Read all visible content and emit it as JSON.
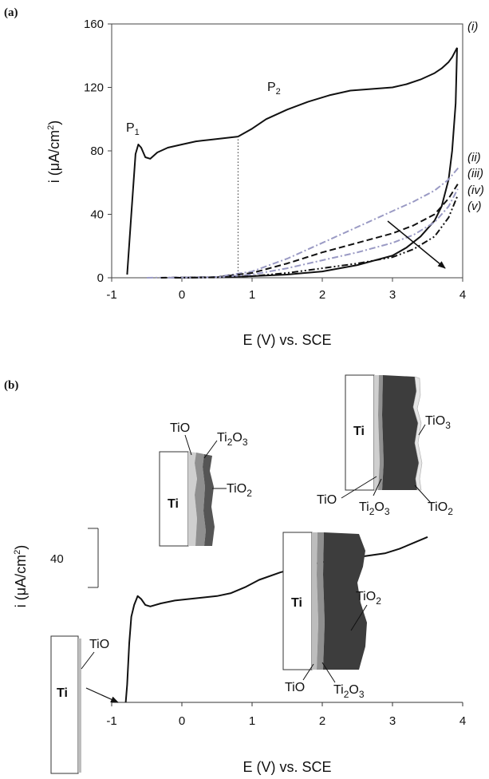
{
  "chart_data": [
    {
      "panel": "(a)",
      "type": "line",
      "xlabel": "E (V) vs. SCE",
      "ylabel": "i (μA/cm2)",
      "xlim": [
        -1,
        4
      ],
      "ylim": [
        0,
        160
      ],
      "x_ticks": [
        "-1",
        "0",
        "1",
        "2",
        "3",
        "4"
      ],
      "y_ticks": [
        "0",
        "40",
        "80",
        "120",
        "160"
      ],
      "peak_labels": [
        "P1",
        "P2"
      ],
      "series": [
        {
          "name": "(i)",
          "style": "solid",
          "color": "#111111",
          "x": [
            -0.78,
            -0.72,
            -0.66,
            -0.62,
            -0.58,
            -0.52,
            -0.45,
            -0.35,
            -0.2,
            0,
            0.2,
            0.4,
            0.6,
            0.8,
            1.0,
            1.2,
            1.5,
            1.8,
            2.1,
            2.4,
            2.7,
            3.0,
            3.2,
            3.4,
            3.6,
            3.7,
            3.8,
            3.85,
            3.92
          ],
          "y": [
            2,
            40,
            78,
            84,
            82,
            76,
            75,
            79,
            82,
            84,
            86,
            87,
            88,
            89,
            94,
            100,
            106,
            111,
            115,
            118,
            119,
            120,
            122,
            125,
            129,
            132,
            136,
            139,
            145
          ]
        },
        {
          "name": "(i) return",
          "style": "solid",
          "color": "#111111",
          "x": [
            3.92,
            3.9,
            3.85,
            3.8,
            3.7,
            3.6,
            3.4,
            3.2,
            3.0,
            2.5,
            2.0,
            1.5,
            1.0,
            0.5,
            0
          ],
          "y": [
            145,
            110,
            80,
            62,
            45,
            36,
            26,
            19,
            14,
            8,
            4,
            2,
            1,
            0.3,
            0
          ]
        },
        {
          "name": "(ii)",
          "style": "dash-dot",
          "color": "#9a9ac4",
          "x": [
            -0.5,
            0.5,
            1.0,
            1.5,
            2.0,
            2.5,
            3.0,
            3.3,
            3.6,
            3.8,
            3.95
          ],
          "y": [
            0,
            0.5,
            4,
            12,
            22,
            32,
            42,
            48,
            55,
            62,
            70
          ]
        },
        {
          "name": "(iii)",
          "style": "dash",
          "color": "#111111",
          "x": [
            -0.3,
            0.5,
            1.0,
            1.5,
            2.0,
            2.5,
            3.0,
            3.3,
            3.6,
            3.8,
            3.93
          ],
          "y": [
            0,
            0.4,
            3,
            9,
            16,
            22,
            28,
            33,
            40,
            50,
            59
          ]
        },
        {
          "name": "(iv)",
          "style": "dash-dot",
          "color": "#9a9ac4",
          "x": [
            -0.2,
            0.5,
            1.0,
            1.5,
            2.0,
            2.5,
            3.0,
            3.3,
            3.6,
            3.8,
            3.93
          ],
          "y": [
            0,
            0.3,
            2,
            6,
            11,
            16,
            22,
            27,
            35,
            45,
            56
          ]
        },
        {
          "name": "(v)",
          "style": "dash-dot-dot",
          "color": "#111111",
          "x": [
            -0.1,
            0.5,
            1.0,
            1.5,
            2.0,
            2.5,
            3.0,
            3.3,
            3.6,
            3.8,
            3.93
          ],
          "y": [
            0,
            0.2,
            1,
            3,
            6,
            9,
            13,
            18,
            26,
            38,
            52
          ]
        }
      ],
      "annotations": {
        "dotted_line_x": 0.8,
        "arrow_from": [
          2.8,
          90
        ],
        "arrow_to": [
          3.8,
          6
        ]
      }
    },
    {
      "panel": "(b)",
      "type": "line",
      "xlabel": "E (V) vs. SCE",
      "ylabel": "i (μA/cm2)",
      "xlim": [
        -1,
        4
      ],
      "x_ticks": [
        "-1",
        "0",
        "1",
        "2",
        "3",
        "4"
      ],
      "scale_bar_value": "40",
      "series": [
        {
          "name": "",
          "style": "solid",
          "color": "#111111",
          "x": [
            -0.8,
            -0.78,
            -0.75,
            -0.72,
            -0.68,
            -0.63,
            -0.58,
            -0.52,
            -0.45,
            -0.3,
            -0.1,
            0.1,
            0.3,
            0.5,
            0.7,
            0.9,
            1.1,
            1.4,
            1.7,
            2.0,
            2.3,
            2.6,
            2.9,
            3.1,
            3.3,
            3.5
          ],
          "y": [
            0,
            12,
            40,
            58,
            66,
            72,
            70,
            66,
            65,
            67,
            69,
            70,
            71,
            72,
            74,
            78,
            83,
            88,
            92,
            95,
            97,
            99,
            101,
            104,
            108,
            112
          ]
        }
      ],
      "oxide_layer_labels": [
        "Ti",
        "TiO",
        "Ti2O3",
        "TiO2",
        "TiO3"
      ]
    }
  ]
}
